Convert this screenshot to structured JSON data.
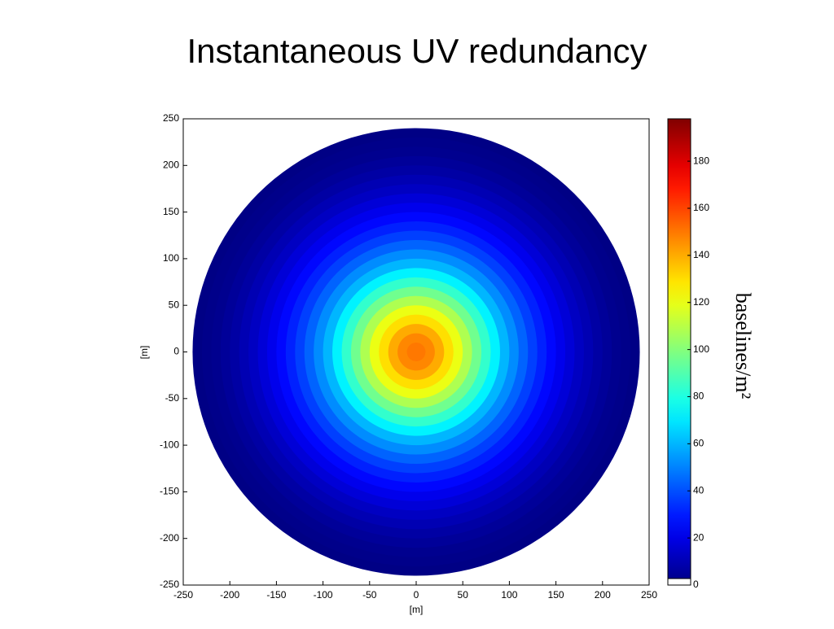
{
  "chart_data": {
    "type": "heatmap",
    "title": "Instantaneous UV redundancy",
    "x_label": "[m]",
    "y_label": "[m]",
    "colorbar_label": "baselines/m²",
    "colormap": "jet",
    "radii": [
      10,
      20,
      30,
      40,
      50,
      60,
      70,
      80,
      90,
      100,
      110,
      120,
      130,
      140,
      150,
      160,
      170,
      180,
      190,
      200,
      210,
      220,
      230,
      240
    ],
    "values": [
      150,
      147,
      140,
      130,
      120,
      108,
      96,
      84,
      72,
      60,
      52,
      44,
      37,
      31,
      26,
      21,
      17,
      13,
      10,
      7,
      5,
      3,
      2,
      1
    ],
    "xlim": [
      -250,
      250
    ],
    "ylim": [
      -250,
      250
    ],
    "xticks": [
      -250,
      -200,
      -150,
      -100,
      -50,
      0,
      50,
      100,
      150,
      200,
      250
    ],
    "yticks": [
      -250,
      -200,
      -150,
      -100,
      -50,
      0,
      50,
      100,
      150,
      200,
      250
    ],
    "clim": [
      0,
      198
    ],
    "cticks": [
      0,
      20,
      40,
      60,
      80,
      100,
      120,
      140,
      160,
      180
    ]
  }
}
